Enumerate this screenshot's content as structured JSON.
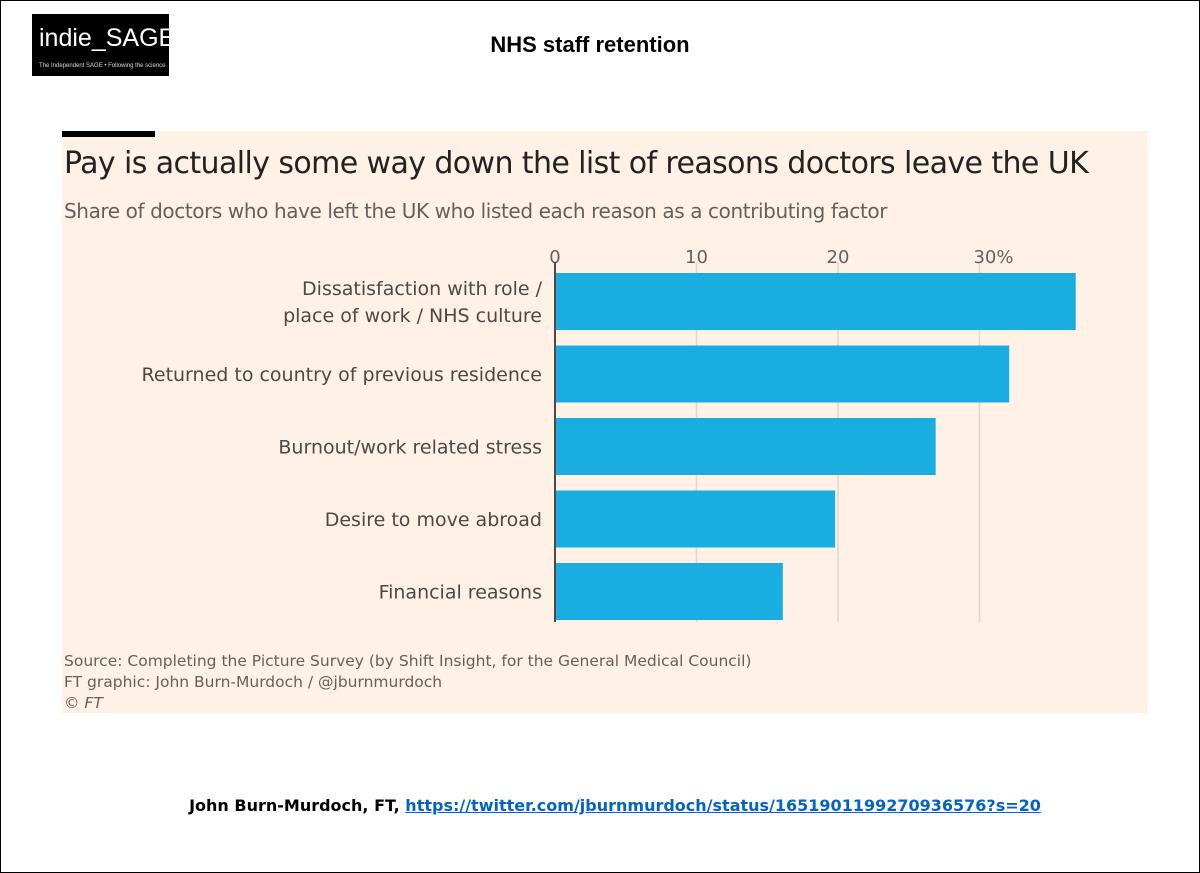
{
  "logo": {
    "name": "indie_SAGE",
    "tagline": "The Independent SAGE • Following the science"
  },
  "slide_title": "NHS staff retention",
  "chart_data": {
    "type": "bar",
    "orientation": "horizontal",
    "title": "Pay is actually some way down the list of reasons doctors leave the UK",
    "subtitle": "Share of doctors who have left the UK who listed each reason as a contributing factor",
    "categories": [
      [
        "Dissatisfaction with role /",
        "place of work / NHS culture"
      ],
      [
        "Returned to country of previous residence"
      ],
      [
        "Burnout/work related stress"
      ],
      [
        "Desire to move abroad"
      ],
      [
        "Financial reasons"
      ]
    ],
    "values": [
      36.8,
      32.1,
      26.9,
      19.8,
      16.1
    ],
    "xlim": [
      0,
      40
    ],
    "ticks": [
      0,
      10,
      20,
      30
    ],
    "tick_labels": [
      "0",
      "10",
      "20",
      "30%"
    ],
    "grid": true,
    "bar_color": "#1aaee0",
    "background": "#fff1e5"
  },
  "source": {
    "line1": "Source: Completing the Picture Survey (by Shift Insight, for the General Medical Council)",
    "line2": "FT graphic: John Burn-Murdoch / @jburnmurdoch",
    "line3": "© FT"
  },
  "credit": {
    "author": "John Burn-Murdoch, FT,",
    "link": "https://twitter.com/jburnmurdoch/status/1651901199270936576?s=20"
  }
}
